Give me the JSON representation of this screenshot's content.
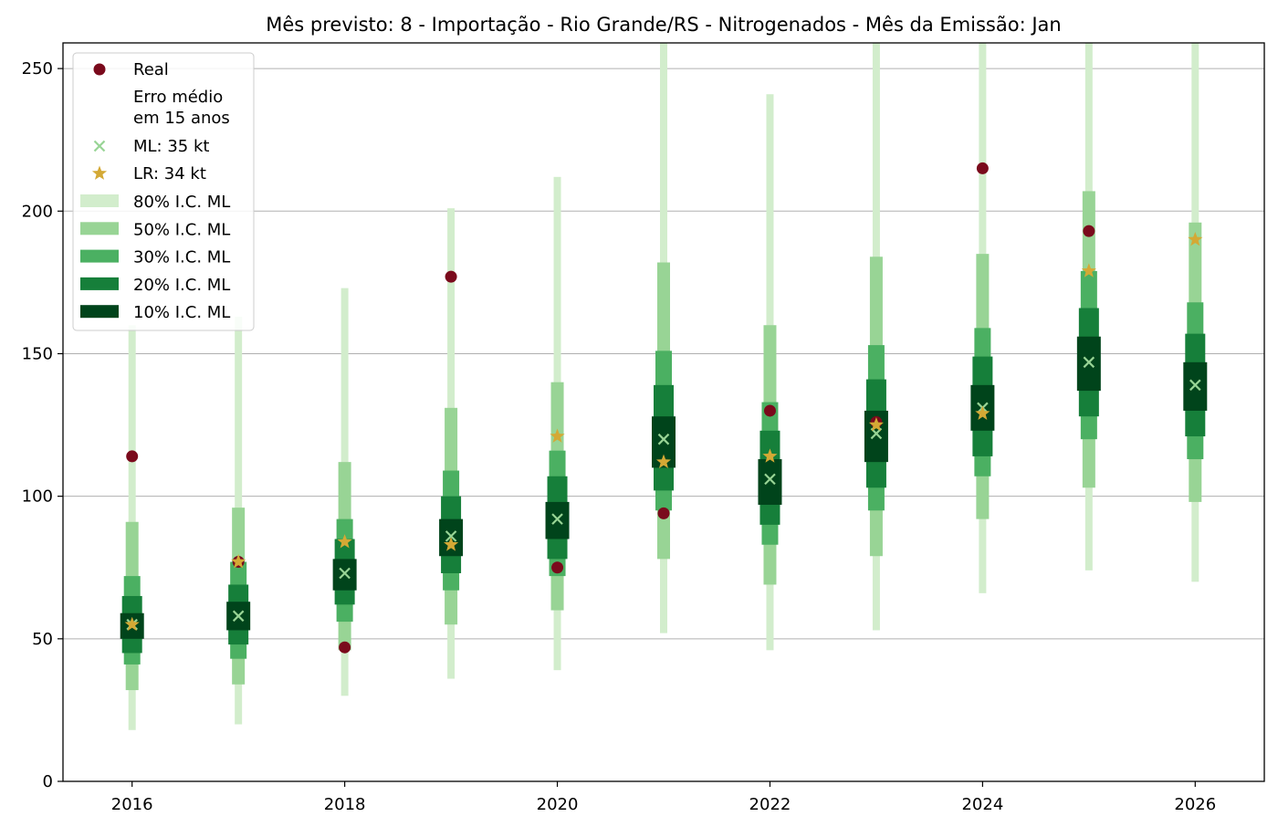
{
  "chart_data": {
    "type": "interval",
    "title": "Mês previsto: 8 - Importação - Rio Grande/RS - Nitrogenados - Mês da Emissão: Jan",
    "xlabel": "",
    "ylabel": "",
    "xlim": [
      2015.35,
      2026.65
    ],
    "ylim": [
      0,
      259
    ],
    "xticks": [
      2016,
      2018,
      2020,
      2022,
      2024,
      2026
    ],
    "yticks": [
      0,
      50,
      100,
      150,
      200,
      250
    ],
    "grid": "horizontal",
    "legend_position": "upper-left",
    "years": [
      2016,
      2017,
      2018,
      2019,
      2020,
      2021,
      2022,
      2023,
      2024,
      2025,
      2026
    ],
    "intervals": [
      {
        "name": "80% I.C. ML",
        "color": "#d2edcc",
        "low": [
          18,
          20,
          30,
          36,
          39,
          52,
          46,
          53,
          66,
          74,
          70
        ],
        "high": [
          160,
          163,
          173,
          201,
          212,
          259,
          241,
          259,
          259,
          259,
          259
        ]
      },
      {
        "name": "50% I.C. ML",
        "color": "#98d495",
        "low": [
          32,
          34,
          46,
          55,
          60,
          78,
          69,
          79,
          92,
          103,
          98
        ],
        "high": [
          91,
          96,
          112,
          131,
          140,
          182,
          160,
          184,
          185,
          207,
          196
        ]
      },
      {
        "name": "30% I.C. ML",
        "color": "#4bb062",
        "low": [
          41,
          43,
          56,
          67,
          72,
          95,
          83,
          95,
          107,
          120,
          113
        ],
        "high": [
          72,
          77,
          92,
          109,
          116,
          151,
          133,
          153,
          159,
          179,
          168
        ]
      },
      {
        "name": "20% I.C. ML",
        "color": "#167f3a",
        "low": [
          45,
          48,
          62,
          73,
          78,
          102,
          90,
          103,
          114,
          128,
          121
        ],
        "high": [
          65,
          69,
          85,
          100,
          107,
          139,
          123,
          141,
          149,
          166,
          157
        ]
      },
      {
        "name": "10% I.C. ML",
        "color": "#00441b",
        "low": [
          50,
          53,
          67,
          79,
          85,
          110,
          97,
          112,
          123,
          137,
          130
        ],
        "high": [
          59,
          63,
          78,
          92,
          98,
          128,
          113,
          130,
          139,
          156,
          147
        ]
      }
    ],
    "series": [
      {
        "name": "Real",
        "marker": "circle",
        "color": "#7a0a1c",
        "values": [
          114,
          77,
          47,
          177,
          75,
          94,
          130,
          126,
          215,
          193,
          null
        ]
      },
      {
        "name": "ML: 35 kt",
        "marker": "x",
        "color": "#98d495",
        "values": [
          55,
          58,
          73,
          86,
          92,
          120,
          106,
          122,
          131,
          147,
          139
        ]
      },
      {
        "name": "LR: 34 kt",
        "marker": "star",
        "color": "#d4a935",
        "values": [
          55,
          77,
          84,
          83,
          121,
          112,
          114,
          125,
          129,
          179,
          190
        ]
      }
    ],
    "legend_note": "Erro médio\nem 15 anos"
  }
}
